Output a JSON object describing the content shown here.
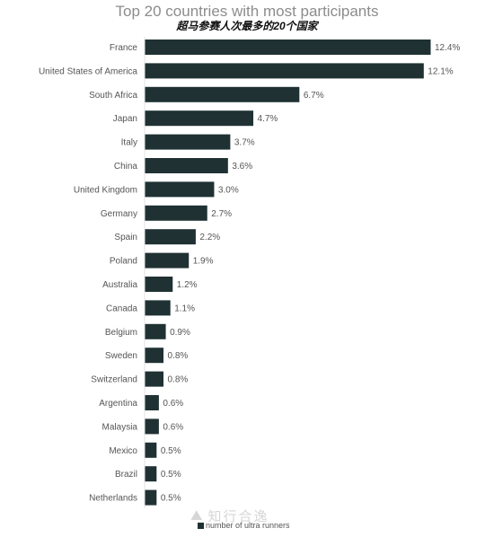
{
  "chart_data": {
    "type": "bar",
    "orientation": "horizontal",
    "title": "Top 20 countries with most participants",
    "subtitle": "超马参赛人次最多的20个国家",
    "categories": [
      "France",
      "United States of America",
      "South Africa",
      "Japan",
      "Italy",
      "China",
      "United Kingdom",
      "Germany",
      "Spain",
      "Poland",
      "Australia",
      "Canada",
      "Belgium",
      "Sweden",
      "Switzerland",
      "Argentina",
      "Malaysia",
      "Mexico",
      "Brazil",
      "Netherlands"
    ],
    "series": [
      {
        "name": "number of ultra runners",
        "values": [
          12.4,
          12.1,
          6.7,
          4.7,
          3.7,
          3.6,
          3.0,
          2.7,
          2.2,
          1.9,
          1.2,
          1.1,
          0.9,
          0.8,
          0.8,
          0.6,
          0.6,
          0.5,
          0.5,
          0.5
        ],
        "labels": [
          "12.4%",
          "12.1%",
          "6.7%",
          "4.7%",
          "3.7%",
          "3.6%",
          "3.0%",
          "2.7%",
          "2.2%",
          "1.9%",
          "1.2%",
          "1.1%",
          "0.9%",
          "0.8%",
          "0.8%",
          "0.6%",
          "0.6%",
          "0.5%",
          "0.5%",
          "0.5%"
        ]
      }
    ],
    "unit": "%",
    "xlim": [
      0,
      12.4
    ],
    "grid": false,
    "legend_position": "bottom",
    "bar_color": "#1f3133"
  },
  "watermark": {
    "text": "知行合逸",
    "icon": "mountain-logo-icon"
  }
}
